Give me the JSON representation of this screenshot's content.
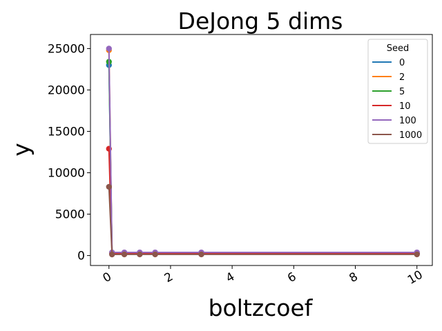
{
  "chart_data": {
    "type": "line",
    "title": "DeJong 5 dims",
    "xlabel": "boltzcoef",
    "ylabel": "y",
    "xlim": [
      -0.6,
      10.5
    ],
    "ylim": [
      -1200,
      26700
    ],
    "xticks": [
      0,
      2,
      4,
      6,
      8,
      10
    ],
    "xtick_labels": [
      "0",
      "2",
      "4",
      "6",
      "8",
      "10"
    ],
    "yticks": [
      0,
      5000,
      10000,
      15000,
      20000,
      25000
    ],
    "ytick_labels": [
      "0",
      "5000",
      "10000",
      "15000",
      "20000",
      "25000"
    ],
    "grid": false,
    "legend": {
      "title": "Seed",
      "position": "top-right"
    },
    "x": [
      0,
      0.1,
      0.5,
      1,
      1.5,
      3,
      10
    ],
    "series": [
      {
        "name": "0",
        "color": "#1f77b4",
        "values": [
          23000,
          250,
          260,
          260,
          260,
          260,
          260
        ]
      },
      {
        "name": "2",
        "color": "#ff7f0e",
        "values": [
          24800,
          260,
          270,
          270,
          270,
          270,
          270
        ]
      },
      {
        "name": "5",
        "color": "#2ca02c",
        "values": [
          23400,
          240,
          250,
          250,
          250,
          250,
          250
        ]
      },
      {
        "name": "10",
        "color": "#d62728",
        "values": [
          12900,
          230,
          240,
          240,
          240,
          240,
          240
        ]
      },
      {
        "name": "100",
        "color": "#9467bd",
        "values": [
          25000,
          380,
          380,
          380,
          380,
          380,
          380
        ]
      },
      {
        "name": "1000",
        "color": "#8c564b",
        "values": [
          8300,
          130,
          140,
          140,
          140,
          140,
          140
        ]
      }
    ]
  }
}
